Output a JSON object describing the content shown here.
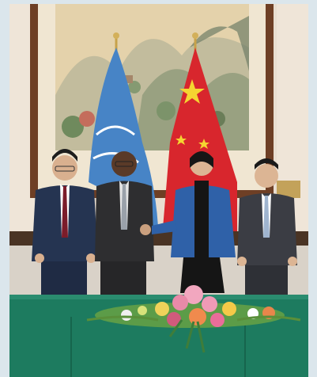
{
  "photo": {
    "alt": "",
    "colors": {
      "wall": "#e7dccd",
      "painting_frame": "#7a4a2c",
      "painting_paper": "#e6d6b4",
      "un_flag": "#3f7fc4",
      "china_flag": "#d9272e",
      "table": "#1f7a5e",
      "floor": "#d8d2c7"
    },
    "icons": [
      "un-flag-icon",
      "china-flag-icon",
      "flower-arrangement-icon"
    ]
  }
}
